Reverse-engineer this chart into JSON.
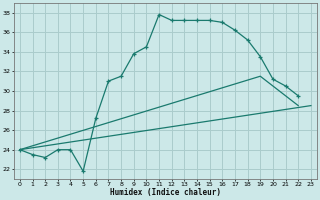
{
  "xlabel": "Humidex (Indice chaleur)",
  "xlim": [
    -0.5,
    23.5
  ],
  "ylim": [
    21,
    39
  ],
  "yticks": [
    22,
    24,
    26,
    28,
    30,
    32,
    34,
    36,
    38
  ],
  "xticks": [
    0,
    1,
    2,
    3,
    4,
    5,
    6,
    7,
    8,
    9,
    10,
    11,
    12,
    13,
    14,
    15,
    16,
    17,
    18,
    19,
    20,
    21,
    22,
    23
  ],
  "background_color": "#cce8e8",
  "grid_color": "#aacccc",
  "line_color": "#1a7a6e",
  "line1_x": [
    0,
    1,
    2,
    3,
    4,
    5,
    6,
    7,
    8,
    9,
    10,
    11,
    12,
    13,
    14,
    15,
    16,
    17,
    18,
    19,
    20,
    21,
    22
  ],
  "line1_y": [
    24.0,
    23.5,
    23.2,
    24.0,
    24.0,
    21.8,
    27.2,
    31.0,
    31.5,
    33.8,
    34.5,
    37.8,
    37.2,
    37.2,
    37.2,
    37.2,
    37.0,
    36.2,
    35.2,
    33.5,
    31.2,
    30.5,
    29.5
  ],
  "line2_x": [
    0,
    19,
    22
  ],
  "line2_y": [
    24.0,
    31.5,
    28.5
  ],
  "line3_x": [
    0,
    23
  ],
  "line3_y": [
    24.0,
    28.5
  ]
}
